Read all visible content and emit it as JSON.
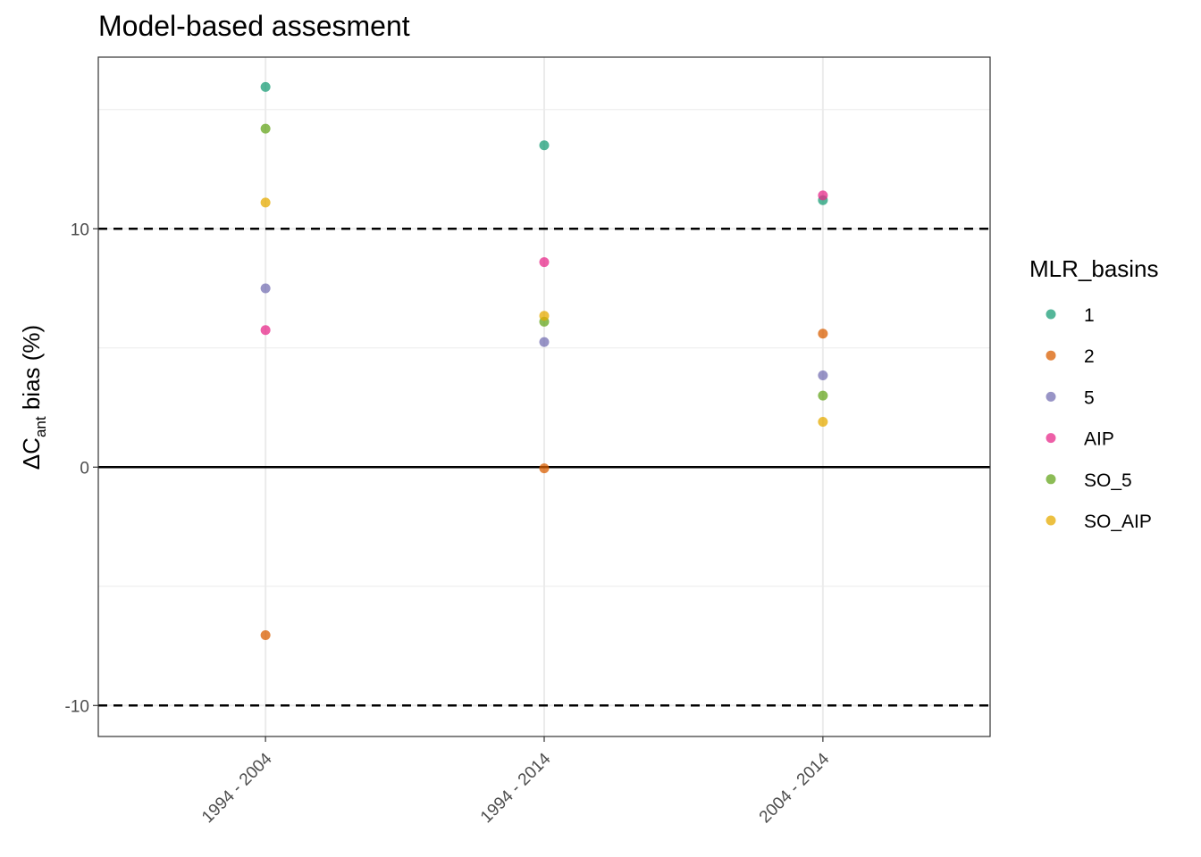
{
  "chart_data": {
    "type": "scatter",
    "title": "Model-based assesment",
    "xlabel": "",
    "ylabel": {
      "prefix": "ΔC",
      "subscript": "ant",
      "suffix": " bias (%)"
    },
    "categories": [
      "1994 - 2004",
      "1994 - 2014",
      "2004 - 2014"
    ],
    "ylim": [
      -11.3,
      17.2
    ],
    "yticks": [
      -10,
      0,
      10
    ],
    "ytick_labels": [
      "-10",
      "0",
      "10"
    ],
    "grid": true,
    "reference_lines": [
      {
        "y": 10,
        "style": "dashed"
      },
      {
        "y": -10,
        "style": "dashed"
      },
      {
        "y": 0,
        "style": "solid"
      }
    ],
    "legend": {
      "title": "MLR_basins",
      "position": "right"
    },
    "series": [
      {
        "name": "1",
        "color": "#1b9e77",
        "values": [
          15.95,
          13.5,
          11.2
        ]
      },
      {
        "name": "2",
        "color": "#d95f02",
        "values": [
          -7.05,
          -0.05,
          5.6
        ]
      },
      {
        "name": "5",
        "color": "#7570b3",
        "values": [
          7.5,
          5.25,
          3.85
        ]
      },
      {
        "name": "AIP",
        "color": "#e7298a",
        "values": [
          5.75,
          8.6,
          11.4
        ]
      },
      {
        "name": "SO_5",
        "color": "#66a61e",
        "values": [
          14.2,
          6.1,
          3.0
        ]
      },
      {
        "name": "SO_AIP",
        "color": "#e6ab02",
        "values": [
          11.1,
          6.35,
          1.9
        ]
      }
    ]
  }
}
